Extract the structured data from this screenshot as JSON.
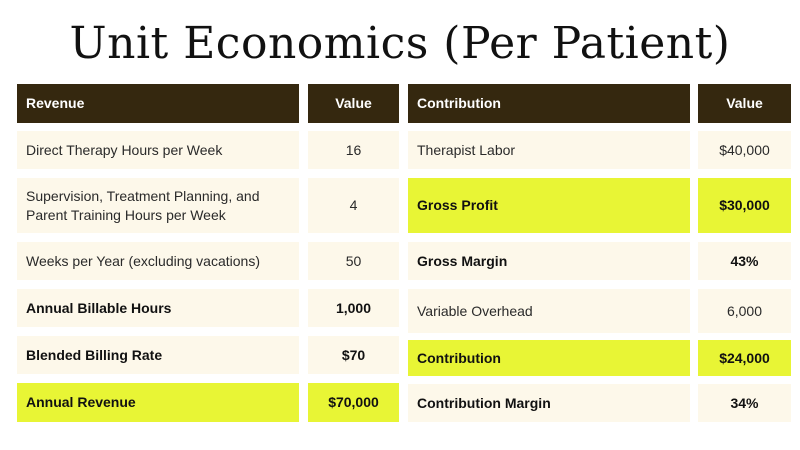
{
  "title": "Unit Economics (Per Patient)",
  "colors": {
    "header_bg": "#35280f",
    "row_bg": "#fdf8ea",
    "highlight": "#e8f535"
  },
  "revenue_table": {
    "header": {
      "label": "Revenue",
      "value": "Value"
    },
    "rows": [
      {
        "label": "Direct Therapy Hours per Week",
        "value": "16",
        "bold": false,
        "highlight": false
      },
      {
        "label": "Supervision, Treatment Planning, and Parent Training Hours per Week",
        "value": "4",
        "bold": false,
        "highlight": false
      },
      {
        "label": "Weeks per Year (excluding vacations)",
        "value": "50",
        "bold": false,
        "highlight": false
      },
      {
        "label": "Annual Billable Hours",
        "value": "1,000",
        "bold": true,
        "highlight": false
      },
      {
        "label": "Blended Billing Rate",
        "value": "$70",
        "bold": true,
        "highlight": false
      },
      {
        "label": "Annual Revenue",
        "value": "$70,000",
        "bold": true,
        "highlight": true
      }
    ]
  },
  "contribution_table": {
    "header": {
      "label": "Contribution",
      "value": "Value"
    },
    "rows": [
      {
        "label": "Therapist Labor",
        "value": "$40,000",
        "bold": false,
        "highlight": false
      },
      {
        "label": "Gross Profit",
        "value": "$30,000",
        "bold": true,
        "highlight": true
      },
      {
        "label": "Gross Margin",
        "value": "43%",
        "bold": true,
        "highlight": false
      },
      {
        "label": "Variable Overhead",
        "value": "6,000",
        "bold": false,
        "highlight": false
      },
      {
        "label": "Contribution",
        "value": "$24,000",
        "bold": true,
        "highlight": true
      },
      {
        "label": "Contribution Margin",
        "value": "34%",
        "bold": true,
        "highlight": false
      }
    ]
  }
}
